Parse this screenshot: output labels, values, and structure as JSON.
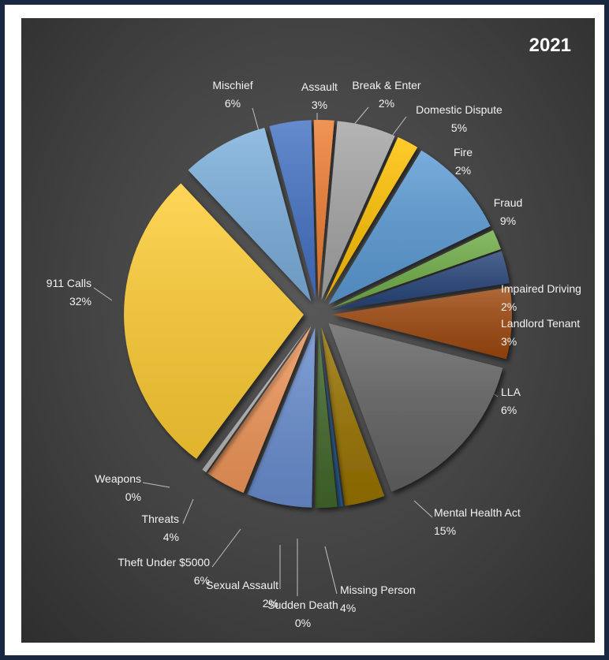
{
  "chart_data": {
    "type": "pie",
    "title": "2021",
    "exploded": true,
    "slices": [
      {
        "label": "Assault",
        "value": 3,
        "value_label": "3%",
        "color": "#4472c4"
      },
      {
        "label": "Break & Enter",
        "value": 2,
        "value_label": "2%",
        "color": "#ed7d31"
      },
      {
        "label": "Domestic Dispute",
        "value": 5,
        "value_label": "5%",
        "color": "#a5a5a5"
      },
      {
        "label": "Fire",
        "value": 2,
        "value_label": "2%",
        "color": "#ffc000"
      },
      {
        "label": "Fraud",
        "value": 9,
        "value_label": "9%",
        "color": "#5b9bd5"
      },
      {
        "label": "Impaired Driving",
        "value": 2,
        "value_label": "2%",
        "color": "#70ad47"
      },
      {
        "label": "Landlord Tenant",
        "value": 3,
        "value_label": "3%",
        "color": "#264478"
      },
      {
        "label": "LLA",
        "value": 6,
        "value_label": "6%",
        "color": "#9e480e"
      },
      {
        "label": "Mental Health Act",
        "value": 15,
        "value_label": "15%",
        "color": "#636363"
      },
      {
        "label": "Missing Person",
        "value": 4,
        "value_label": "4%",
        "color": "#997300"
      },
      {
        "label": "Sudden Death",
        "value": 0,
        "value_label": "0%",
        "color": "#255e91"
      },
      {
        "label": "Sexual Assault",
        "value": 2,
        "value_label": "2%",
        "color": "#43682b"
      },
      {
        "label": "Theft Under $5000",
        "value": 6,
        "value_label": "6%",
        "color": "#698ed0"
      },
      {
        "label": "Threats",
        "value": 4,
        "value_label": "4%",
        "color": "#f1975a"
      },
      {
        "label": "Weapons",
        "value": 0,
        "value_label": "0%",
        "color": "#b7b7b7"
      },
      {
        "label": "911 Calls",
        "value": 32,
        "value_label": "32%",
        "color": "#ffcd33"
      },
      {
        "label": "Mischief",
        "value": 6,
        "value_label": "6%",
        "color": "#7cafdd"
      }
    ]
  }
}
